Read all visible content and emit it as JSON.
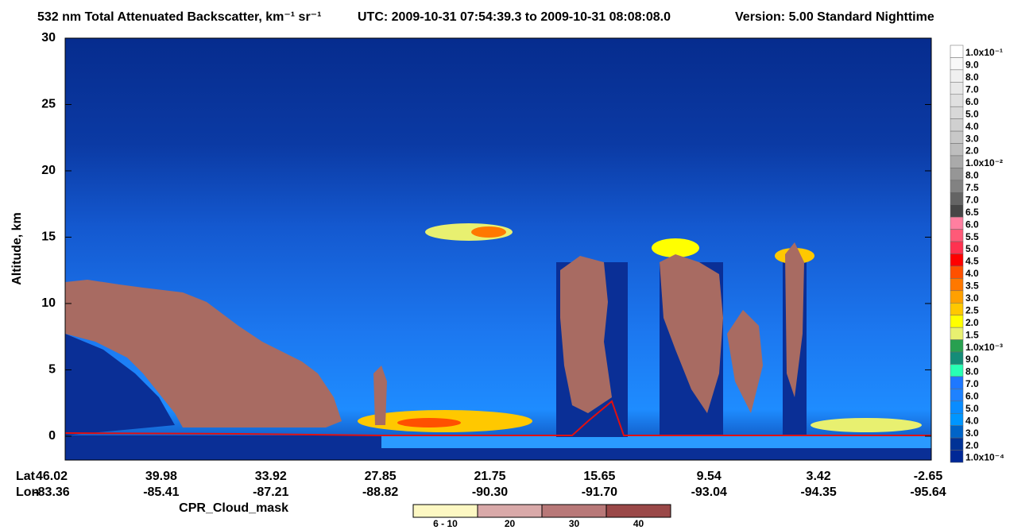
{
  "chart_data": {
    "type": "heatmap",
    "title": "532 nm Total Attenuated Backscatter, km⁻¹ sr⁻¹",
    "subtitle": "UTC:  2009-10-31 07:54:39.3  to  2009-10-31 08:08:08.0",
    "version": "Version: 5.00  Standard  Nighttime",
    "y_label": "Altitude, km",
    "ylim": [
      -1.8,
      30
    ],
    "yticks": [
      0,
      5,
      10,
      15,
      20,
      25,
      30
    ],
    "x_axis": {
      "lat_label": "Lat",
      "lon_label": "Lon",
      "lat": [
        "46.02",
        "39.98",
        "33.92",
        "27.85",
        "21.75",
        "15.65",
        "9.54",
        "3.42",
        "-2.65"
      ],
      "lon": [
        "-83.36",
        "-85.41",
        "-87.21",
        "-88.82",
        "-90.30",
        "-91.70",
        "-93.04",
        "-94.35",
        "-95.64"
      ]
    },
    "colorbar": {
      "labels": [
        "1.0x10⁻¹",
        "9.0",
        "8.0",
        "7.0",
        "6.0",
        "5.0",
        "4.0",
        "3.0",
        "2.0",
        "1.0x10⁻²",
        "8.0",
        "7.5",
        "7.0",
        "6.5",
        "6.0",
        "5.5",
        "5.0",
        "4.5",
        "4.0",
        "3.5",
        "3.0",
        "2.5",
        "2.0",
        "1.5",
        "1.0x10⁻³",
        "9.0",
        "8.0",
        "7.0",
        "6.0",
        "5.0",
        "4.0",
        "3.0",
        "2.0",
        "1.0x10⁻⁴"
      ],
      "colors": [
        "#ffffff",
        "#f8f8f8",
        "#f0f0f0",
        "#e8e8e8",
        "#e0e0e0",
        "#d8d8d8",
        "#d0d0d0",
        "#c8c8c8",
        "#bebebe",
        "#aaaaaa",
        "#969696",
        "#828282",
        "#646464",
        "#464646",
        "#ff7fa0",
        "#ff5a78",
        "#ff3250",
        "#ff0000",
        "#ff5000",
        "#ff7800",
        "#ffa000",
        "#ffc800",
        "#ffff00",
        "#e8f070",
        "#28a050",
        "#148c78",
        "#28ffb4",
        "#1e78ff",
        "#1e82ff",
        "#0a8cff",
        "#0096ff",
        "#0064c8",
        "#003296",
        "#002896"
      ]
    },
    "cloud_mask": {
      "title": "CPR_Cloud_mask",
      "labels": [
        "6 - 10",
        "20",
        "30",
        "40"
      ],
      "colors": [
        "#fdf8c3",
        "#d9a9a9",
        "#b87878",
        "#9a4848"
      ]
    }
  }
}
